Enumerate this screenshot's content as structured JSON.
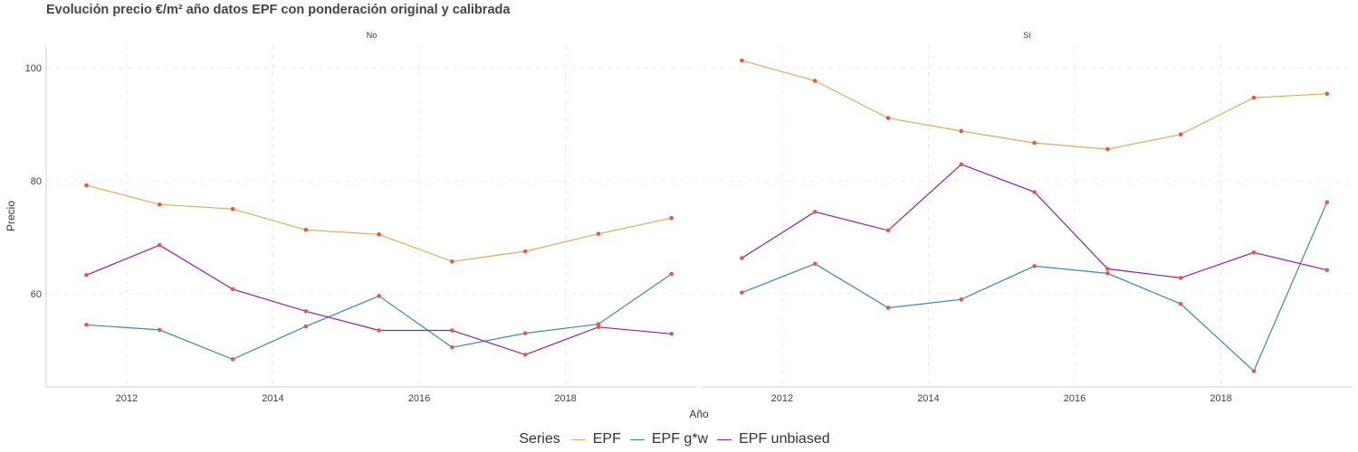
{
  "chart_data": {
    "type": "line",
    "title": "Evolución precio €/m² año datos EPF con ponderación original y calibrada",
    "xlabel": "Año",
    "ylabel": "Precio",
    "xlim": [
      2010.9,
      2019.8
    ],
    "ylim": [
      43.5,
      104
    ],
    "x_ticks": [
      2012,
      2014,
      2016,
      2018
    ],
    "y_ticks": [
      60,
      80,
      100
    ],
    "grid": true,
    "legend": {
      "title": "Series",
      "position": "bottom"
    },
    "x": [
      2011.45,
      2012.45,
      2013.45,
      2014.45,
      2015.45,
      2016.45,
      2017.45,
      2018.45,
      2019.45
    ],
    "facets": [
      {
        "label": "No",
        "series": [
          {
            "name": "EPF",
            "color": "#e0ac58",
            "values": [
              79.2,
              75.8,
              75.0,
              71.3,
              70.5,
              65.7,
              67.5,
              70.6,
              73.4
            ]
          },
          {
            "name": "EPF g*w",
            "color": "#3c86c0",
            "values": [
              54.5,
              53.6,
              48.4,
              54.2,
              59.6,
              50.5,
              53.0,
              54.6,
              63.5
            ]
          },
          {
            "name": "EPF unbiased",
            "color": "#8f1fb4",
            "values": [
              63.3,
              68.6,
              60.8,
              56.9,
              53.5,
              53.5,
              49.2,
              54.1,
              52.9
            ]
          }
        ]
      },
      {
        "label": "Sí",
        "series": [
          {
            "name": "EPF",
            "color": "#e0ac58",
            "values": [
              101.3,
              97.7,
              91.1,
              88.8,
              86.7,
              85.6,
              88.2,
              94.7,
              95.4
            ]
          },
          {
            "name": "EPF g*w",
            "color": "#3c86c0",
            "values": [
              60.2,
              65.3,
              57.5,
              59.0,
              64.9,
              63.6,
              58.2,
              46.3,
              76.2
            ]
          },
          {
            "name": "EPF unbiased",
            "color": "#8f1fb4",
            "values": [
              66.3,
              74.5,
              71.2,
              82.9,
              78.0,
              64.4,
              62.8,
              67.3,
              64.2
            ]
          }
        ]
      }
    ],
    "point_color": "#e05a4e"
  }
}
